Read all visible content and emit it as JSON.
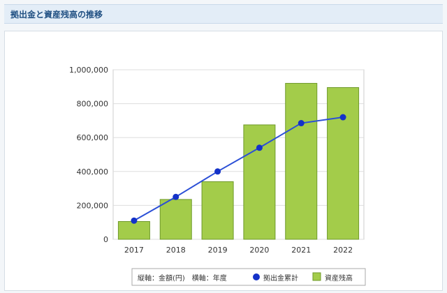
{
  "header": {
    "title": "拠出金と資産残高の推移"
  },
  "legend": {
    "axis_note": "縦軸：金額(円)　横軸：年度",
    "line_label": "拠出金累計",
    "bar_label": "資産残高"
  },
  "colors": {
    "bar_fill": "#a3cc4a",
    "bar_stroke": "#6f9a2b",
    "line": "#2b4fd6",
    "marker": "#1432c8"
  },
  "chart_data": {
    "type": "bar",
    "categories": [
      "2017",
      "2018",
      "2019",
      "2020",
      "2021",
      "2022"
    ],
    "ylim": [
      0,
      1000000
    ],
    "yticks": [
      0,
      200000,
      400000,
      600000,
      800000,
      1000000
    ],
    "ytick_labels": [
      "0",
      "200,000",
      "400,000",
      "600,000",
      "800,000",
      "1,000,000"
    ],
    "series": [
      {
        "name": "資産残高",
        "type": "bar",
        "values": [
          105000,
          235000,
          340000,
          675000,
          920000,
          895000
        ]
      },
      {
        "name": "拠出金累計",
        "type": "line",
        "values": [
          110000,
          250000,
          400000,
          540000,
          685000,
          720000
        ]
      }
    ],
    "grid": true,
    "legend_position": "bottom"
  }
}
